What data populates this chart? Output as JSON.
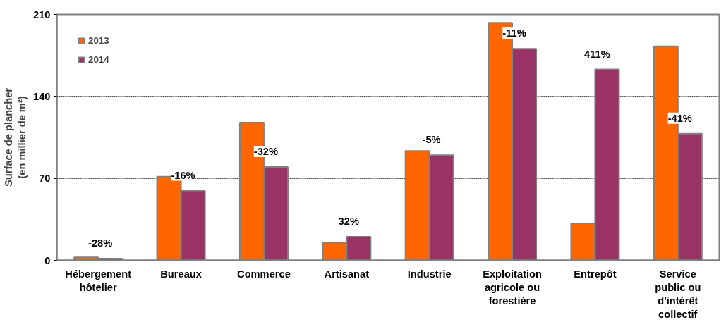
{
  "chart_data": {
    "type": "bar",
    "ylabel": "Surface de plancher\n(en millier de m²)",
    "categories": [
      "Hébergement\nhôtelier",
      "Bureaux",
      "Commerce",
      "Artisanat",
      "Industrie",
      "Exploitation\nagricole ou\nforestière",
      "Entrepôt",
      "Service\npublic ou\nd'intérêt\ncollectif"
    ],
    "series": [
      {
        "name": "2013",
        "color": "#ff6600",
        "values": [
          2.5,
          71.5,
          117.6,
          15.2,
          93.4,
          203,
          31.6,
          182.8
        ]
      },
      {
        "name": "2014",
        "color": "#993366",
        "values": [
          1.5,
          59.5,
          79.7,
          20.2,
          89.8,
          180.7,
          163,
          108.2
        ]
      }
    ],
    "ylim": [
      0,
      210
    ],
    "yticks": [
      0,
      70,
      140,
      210
    ],
    "grid": "y",
    "legend": "top left",
    "annotations": [
      "-28%",
      "-16%",
      "-32%",
      "32%",
      "-5%",
      "-11%",
      "411%",
      "-41%"
    ]
  }
}
